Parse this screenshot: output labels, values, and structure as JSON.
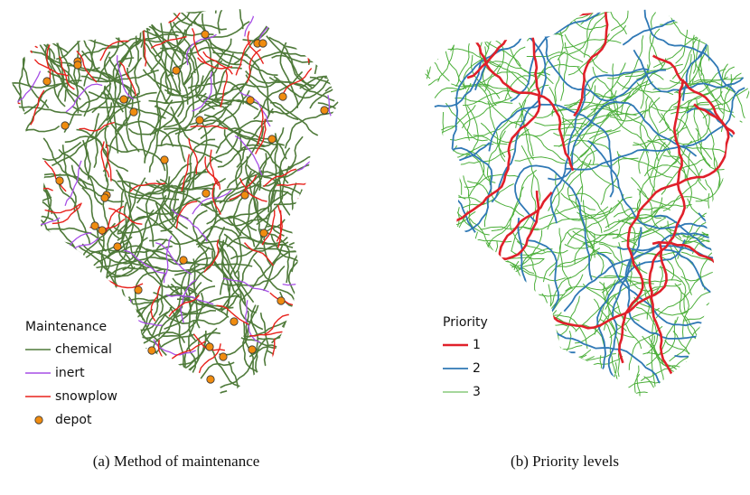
{
  "panels": [
    {
      "caption": "(a) Method of maintenance",
      "legend": {
        "title": "Maintenance",
        "items": [
          {
            "label": "chemical",
            "color": "#4f7a3a"
          },
          {
            "label": "inert",
            "color": "#a64ee6"
          },
          {
            "label": "snowplow",
            "color": "#e8221c"
          },
          {
            "label": "depot",
            "color": "#f08c10",
            "marker": "circle"
          }
        ]
      }
    },
    {
      "caption": "(b) Priority levels",
      "legend": {
        "title": "Priority",
        "items": [
          {
            "label": "1",
            "color": "#e0202a"
          },
          {
            "label": "2",
            "color": "#2f78b5"
          },
          {
            "label": "3",
            "color": "#4caf3a"
          }
        ]
      }
    }
  ]
}
